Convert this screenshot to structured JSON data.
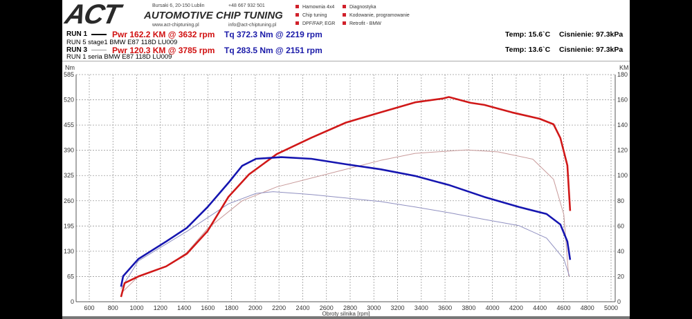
{
  "header": {
    "logo_text": "ACT",
    "logo_subtitle": "AUTOMOTIVE CHIP TUNING",
    "address": "Bursaki 6, 20-150 Lublin",
    "phone": "+48 667 932 501",
    "website": "www.act-chiptuning.pl",
    "email": "info@act-chiptuning.pl",
    "services": [
      "Hamownia 4x4",
      "Diagnostyka",
      "Chip tuning",
      "Kodowanie, programowanie",
      "DPF/FAP, EGR",
      "Retrofit - BMW"
    ]
  },
  "runs": [
    {
      "label": "RUN 1",
      "desc": "RUN 5 stage1 BMW E87 118D LU009",
      "pwr": "Pwr  162.2 KM @ 3632 rpm",
      "tq": "Tq 372.3 Nm @ 2219 rpm",
      "temp": "Temp: 15.6`C",
      "pressure": "Cisnienie: 97.3kPa"
    },
    {
      "label": "RUN 3",
      "desc": "RUN 1 seria BMW E87 118D LU009",
      "pwr": "Pwr  120.3 KM @ 3785 rpm",
      "tq": "Tq 283.5 Nm @ 2151 rpm",
      "temp": "Temp: 13.6`C",
      "pressure": "Cisnienie: 97.3kPa"
    }
  ],
  "chart_data": {
    "type": "line",
    "xlabel": "Obroty silnika [rpm]",
    "ylabel_left": "Nm",
    "ylabel_right": "KM",
    "xlim": [
      500,
      5000
    ],
    "x_ticks": [
      600,
      800,
      1000,
      1200,
      1400,
      1600,
      1800,
      2000,
      2200,
      2400,
      2600,
      2800,
      3000,
      3200,
      3400,
      3600,
      3800,
      4000,
      4200,
      4400,
      4600,
      4800,
      5000
    ],
    "ylim_left": [
      0,
      585
    ],
    "y_ticks_left": [
      0,
      65,
      130,
      195,
      260,
      325,
      390,
      455,
      520,
      585
    ],
    "ylim_right": [
      0,
      180
    ],
    "y_ticks_right": [
      0,
      20,
      40,
      60,
      80,
      100,
      120,
      140,
      160,
      180
    ],
    "grid": true,
    "colors": {
      "power": "#d01818",
      "torque": "#1515b0",
      "power_thin": "#c89a9a",
      "torque_thin": "#8f8fc0"
    },
    "series": [
      {
        "name": "RUN 1 Power (KM)",
        "axis": "right",
        "style": "thick",
        "color_key": "power",
        "x": [
          868,
          898,
          1014,
          1248,
          1423,
          1598,
          1773,
          1948,
          2181,
          2473,
          2765,
          3056,
          3348,
          3581,
          3632,
          3815,
          3931,
          4165,
          4398,
          4515,
          4573,
          4632,
          4655
        ],
        "y": [
          3.8,
          14.8,
          20,
          28,
          38,
          56,
          83,
          101,
          117,
          130,
          142,
          150,
          158,
          161,
          162.2,
          157.6,
          156,
          150,
          145,
          140.6,
          129.7,
          108,
          72
        ]
      },
      {
        "name": "RUN 1 Torque (Nm)",
        "axis": "left",
        "style": "thick",
        "color_key": "torque",
        "x": [
          868,
          886,
          1014,
          1248,
          1423,
          1598,
          1773,
          1889,
          2006,
          2219,
          2473,
          2765,
          3056,
          3348,
          3640,
          3931,
          4223,
          4456,
          4573,
          4632,
          4655
        ],
        "y": [
          39,
          66,
          110,
          155,
          190,
          244,
          306,
          350,
          368,
          372.3,
          368,
          354,
          341,
          324,
          300,
          270,
          244,
          226,
          199,
          155,
          108
        ]
      },
      {
        "name": "RUN 3 Power (KM)",
        "axis": "right",
        "style": "thin",
        "color_key": "power_thin",
        "x": [
          868,
          1014,
          1248,
          1423,
          1598,
          1889,
          2181,
          2473,
          2765,
          3056,
          3348,
          3698,
          3785,
          4048,
          4340,
          4515,
          4602,
          4643
        ],
        "y": [
          6.6,
          20,
          28,
          39,
          58,
          80,
          91,
          98,
          105,
          112,
          117.6,
          119.8,
          120.3,
          118.7,
          113,
          97,
          69,
          20
        ]
      },
      {
        "name": "RUN 3 Torque (Nm)",
        "axis": "left",
        "style": "thin",
        "color_key": "torque_thin",
        "x": [
          868,
          1014,
          1423,
          1773,
          2006,
          2151,
          2473,
          2765,
          3056,
          3348,
          3640,
          3931,
          4223,
          4456,
          4602,
          4649
        ],
        "y": [
          34,
          105,
          181,
          252,
          279,
          283.5,
          276,
          267,
          258,
          244,
          229,
          212,
          196,
          164,
          110,
          66
        ]
      }
    ]
  }
}
